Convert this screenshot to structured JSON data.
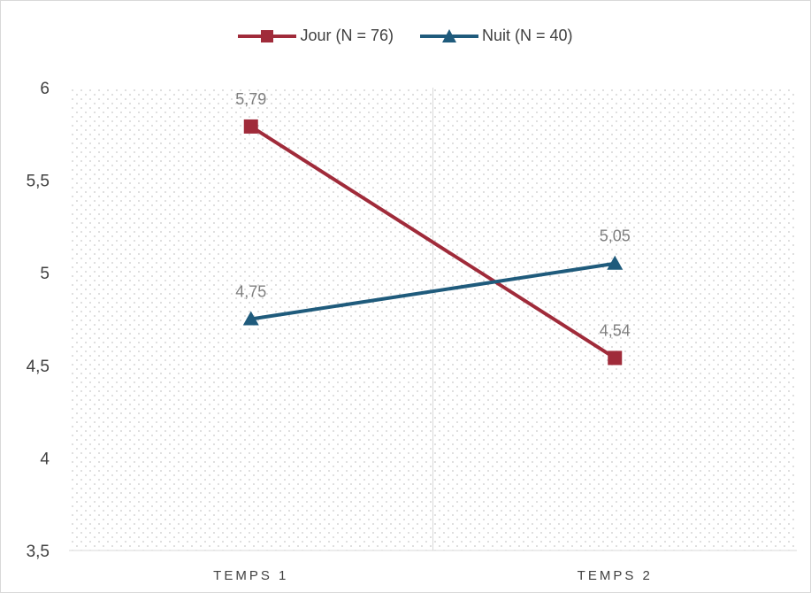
{
  "chart_data": {
    "type": "line",
    "categories": [
      "TEMPS 1",
      "TEMPS 2"
    ],
    "series": [
      {
        "name": "Jour (N = 76)",
        "values": [
          5.79,
          4.54
        ],
        "labels": [
          "5,79",
          "4,54"
        ],
        "color": "#a02b3a",
        "marker": "square"
      },
      {
        "name": "Nuit (N = 40)",
        "values": [
          4.75,
          5.05
        ],
        "labels": [
          "4,75",
          "5,05"
        ],
        "color": "#1f5b7c",
        "marker": "triangle"
      }
    ],
    "ylim": [
      3.5,
      6
    ],
    "yticks": [
      {
        "value": 3.5,
        "label": "3,5"
      },
      {
        "value": 4,
        "label": "4"
      },
      {
        "value": 4.5,
        "label": "4,5"
      },
      {
        "value": 5,
        "label": "5"
      },
      {
        "value": 5.5,
        "label": "5,5"
      },
      {
        "value": 6,
        "label": "6"
      }
    ],
    "legend_position": "top",
    "grid": false,
    "background_pattern": "dotted"
  }
}
